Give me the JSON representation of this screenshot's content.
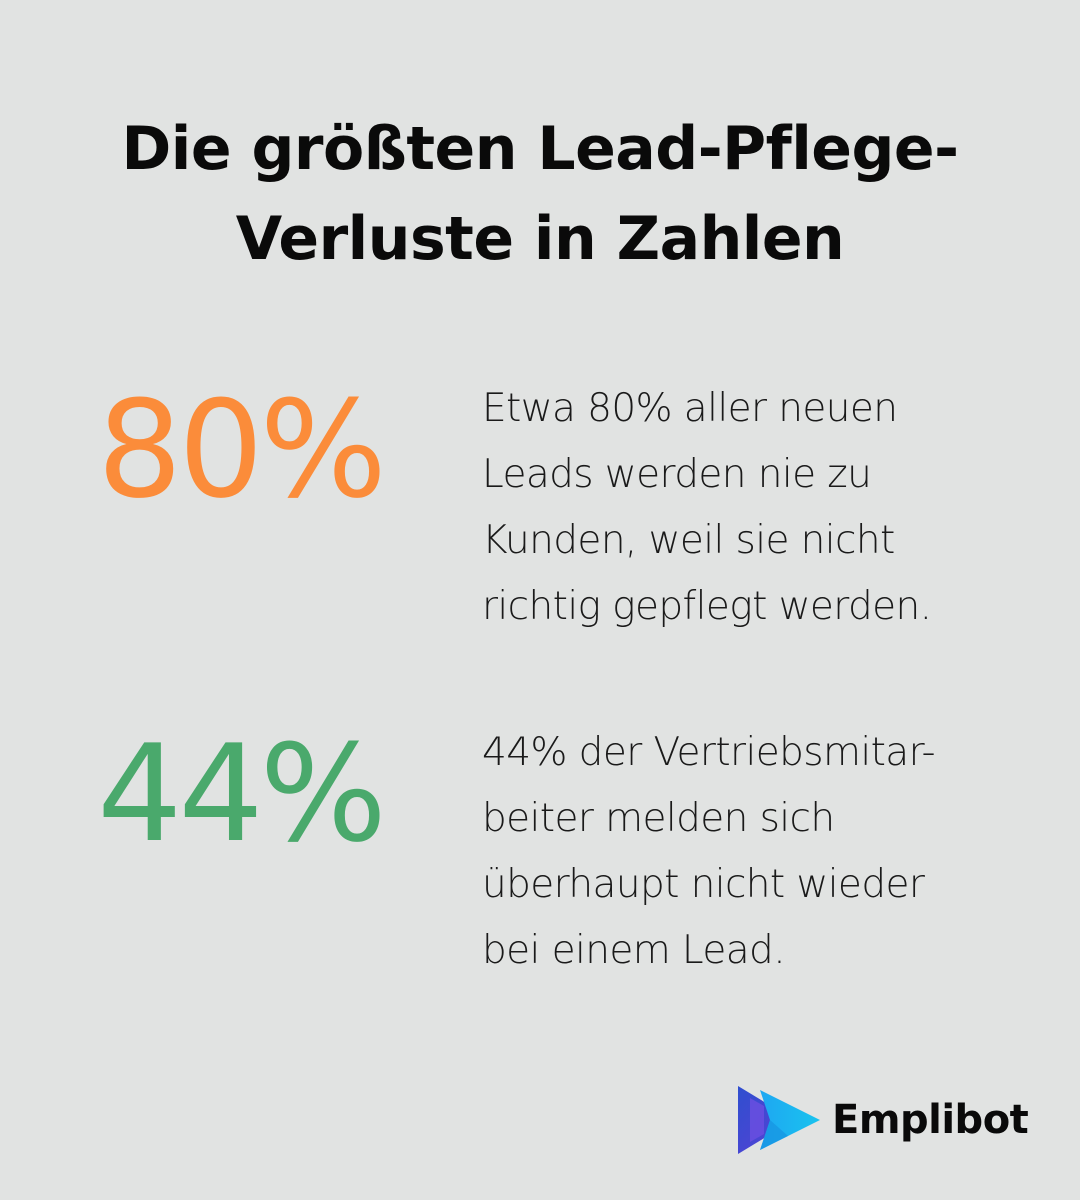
{
  "title": {
    "line1": "Die größten Lead-Pflege-",
    "line2": "Verluste in Zahlen"
  },
  "stats": [
    {
      "value": "80%",
      "color": "#fb8c3a",
      "lines": [
        "Etwa 80% aller neuen",
        "Leads werden nie zu",
        "Kunden, weil sie nicht",
        "richtig gepflegt werden."
      ]
    },
    {
      "value": "44%",
      "color": "#4aa96c",
      "lines": [
        "44% der Vertriebsmitar-",
        "beiter melden sich",
        "überhaupt nicht wieder",
        "bei einem Lead."
      ]
    }
  ],
  "brand": {
    "name": "Emplibot",
    "logo_icon": "play-arrow-logo-icon",
    "colors": [
      "#3a5bd9",
      "#1ab0f0"
    ]
  }
}
